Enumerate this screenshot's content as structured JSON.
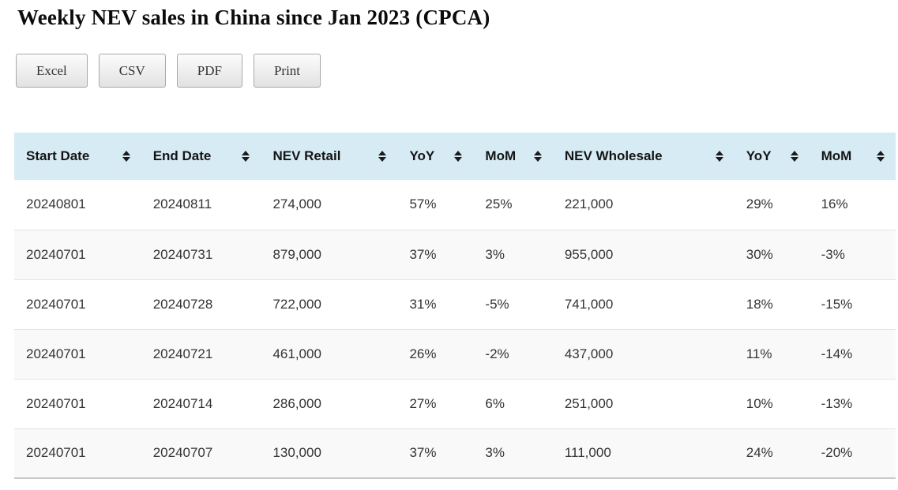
{
  "page": {
    "title": "Weekly NEV sales in China since Jan 2023 (CPCA)"
  },
  "toolbar": {
    "buttons": [
      {
        "label": "Excel"
      },
      {
        "label": "CSV"
      },
      {
        "label": "PDF"
      },
      {
        "label": "Print"
      }
    ]
  },
  "table": {
    "columns": [
      {
        "label": "Start Date",
        "sort_icon": "sort-both-icon"
      },
      {
        "label": "End Date",
        "sort_icon": "sort-both-icon"
      },
      {
        "label": "NEV Retail",
        "sort_icon": "sort-both-icon"
      },
      {
        "label": "YoY",
        "sort_icon": "sort-both-icon"
      },
      {
        "label": "MoM",
        "sort_icon": "sort-both-icon"
      },
      {
        "label": "NEV Wholesale",
        "sort_icon": "sort-both-icon"
      },
      {
        "label": "YoY",
        "sort_icon": "sort-both-icon"
      },
      {
        "label": "MoM",
        "sort_icon": "sort-both-icon"
      }
    ],
    "rows": [
      {
        "cells": [
          "20240801",
          "20240811",
          "274,000",
          "57%",
          "25%",
          "221,000",
          "29%",
          "16%"
        ]
      },
      {
        "cells": [
          "20240701",
          "20240731",
          "879,000",
          "37%",
          "3%",
          "955,000",
          "30%",
          "-3%"
        ]
      },
      {
        "cells": [
          "20240701",
          "20240728",
          "722,000",
          "31%",
          "-5%",
          "741,000",
          "18%",
          "-15%"
        ]
      },
      {
        "cells": [
          "20240701",
          "20240721",
          "461,000",
          "26%",
          "-2%",
          "437,000",
          "11%",
          "-14%"
        ]
      },
      {
        "cells": [
          "20240701",
          "20240714",
          "286,000",
          "27%",
          "6%",
          "251,000",
          "10%",
          "-13%"
        ]
      },
      {
        "cells": [
          "20240701",
          "20240707",
          "130,000",
          "37%",
          "3%",
          "111,000",
          "24%",
          "-20%"
        ]
      }
    ]
  },
  "colors": {
    "header_bg": "#d7ebf5",
    "row_alt_bg": "#f9f9f9",
    "row_border": "#e3e3e3",
    "table_bottom_border": "#c9c9c9",
    "text": "#333333",
    "button_border": "#a8a8a8"
  }
}
